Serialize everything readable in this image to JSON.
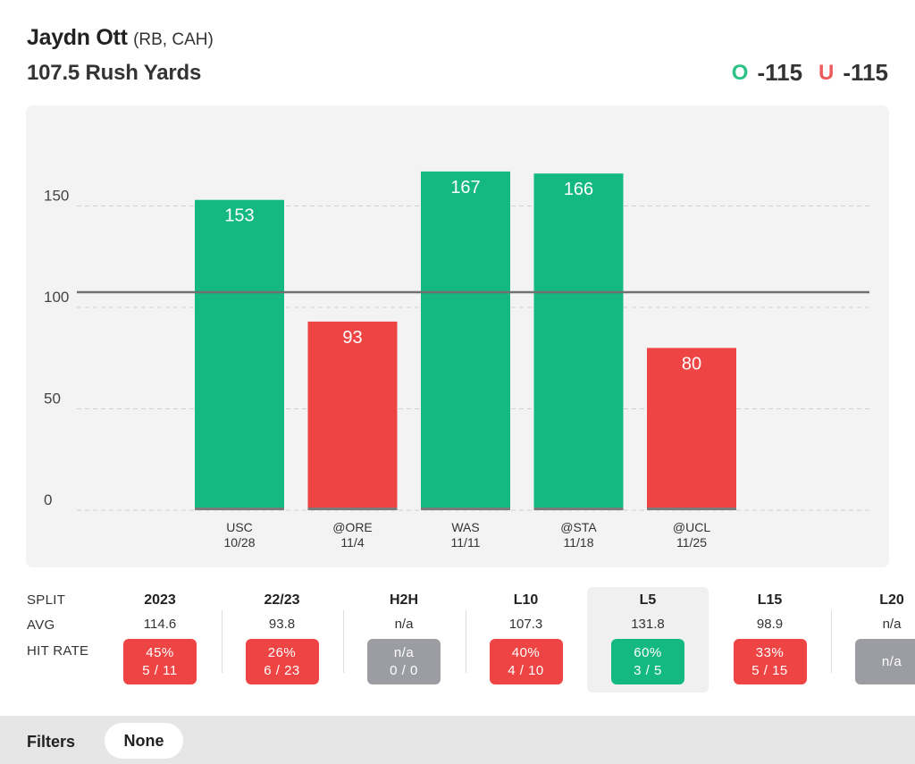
{
  "header": {
    "player_name": "Jaydn Ott",
    "player_meta": "(RB, CAH)",
    "prop_line": "107.5 Rush Yards",
    "over_letter": "O",
    "over_odds": "-115",
    "under_letter": "U",
    "under_odds": "-115"
  },
  "colors": {
    "hit": "#14b981",
    "miss": "#ef4444",
    "na": "#9b9da2",
    "over_accent": "#2cc28a",
    "under_accent": "#ef5a5a"
  },
  "chart_data": {
    "type": "bar",
    "categories": [
      "USC",
      "@ORE",
      "WAS",
      "@STA",
      "@UCL"
    ],
    "dates": [
      "10/28",
      "11/4",
      "11/11",
      "11/18",
      "11/25"
    ],
    "values": [
      153,
      93,
      167,
      166,
      80
    ],
    "line": 107.5,
    "yticks": [
      0,
      50,
      100,
      150
    ],
    "ylim": [
      0,
      190
    ],
    "grid": true
  },
  "splits": {
    "row_labels": {
      "split": "SPLIT",
      "avg": "AVG",
      "hit_rate": "HIT RATE"
    },
    "columns": [
      {
        "name": "2023",
        "avg": "114.6",
        "pct": "45%",
        "record": "5 / 11",
        "status": "miss"
      },
      {
        "name": "22/23",
        "avg": "93.8",
        "pct": "26%",
        "record": "6 / 23",
        "status": "miss"
      },
      {
        "name": "H2H",
        "avg": "n/a",
        "pct": "n/a",
        "record": "0 / 0",
        "status": "na"
      },
      {
        "name": "L10",
        "avg": "107.3",
        "pct": "40%",
        "record": "4 / 10",
        "status": "miss"
      },
      {
        "name": "L5",
        "avg": "131.8",
        "pct": "60%",
        "record": "3 / 5",
        "status": "hit",
        "active": true
      },
      {
        "name": "L15",
        "avg": "98.9",
        "pct": "33%",
        "record": "5 / 15",
        "status": "miss"
      },
      {
        "name": "L20",
        "avg": "n/a",
        "pct": "n/a",
        "record": "",
        "status": "na"
      }
    ]
  },
  "filters": {
    "label": "Filters",
    "value": "None"
  }
}
